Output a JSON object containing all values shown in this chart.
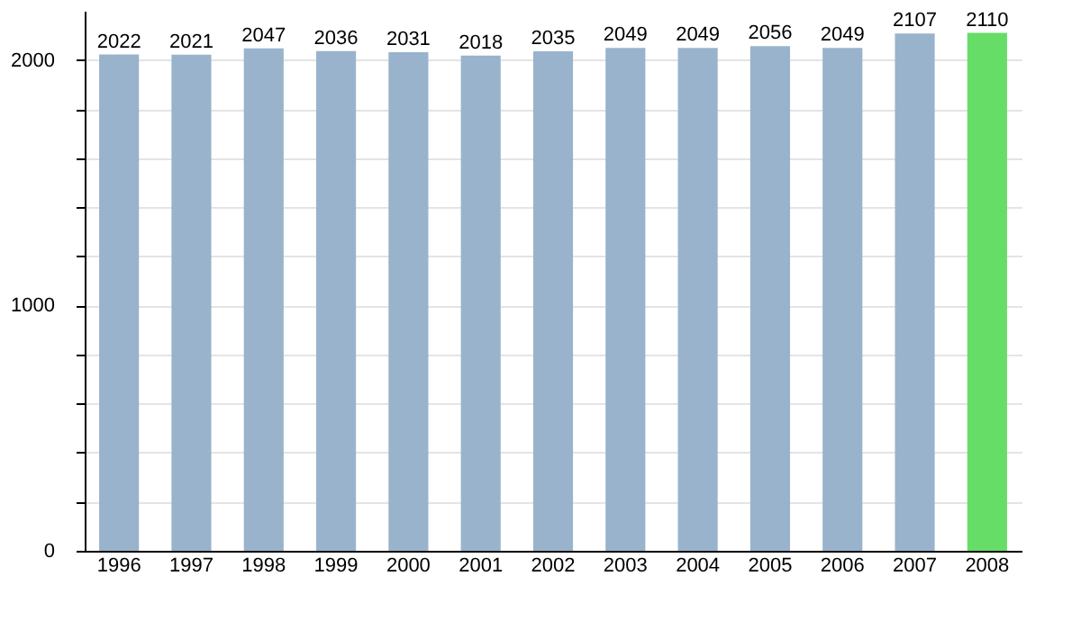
{
  "chart_data": {
    "type": "bar",
    "categories": [
      "1996",
      "1997",
      "1998",
      "1999",
      "2000",
      "2001",
      "2002",
      "2003",
      "2004",
      "2005",
      "2006",
      "2007",
      "2008"
    ],
    "values": [
      2022,
      2021,
      2047,
      2036,
      2031,
      2018,
      2035,
      2049,
      2049,
      2056,
      2049,
      2107,
      2110
    ],
    "colors": [
      "#99b3cc",
      "#99b3cc",
      "#99b3cc",
      "#99b3cc",
      "#99b3cc",
      "#99b3cc",
      "#99b3cc",
      "#99b3cc",
      "#99b3cc",
      "#99b3cc",
      "#99b3cc",
      "#99b3cc",
      "#66dd66"
    ],
    "ylim": [
      0,
      2200
    ],
    "yticks": [
      0,
      {
        "value": 200,
        "label": null
      },
      {
        "value": 400,
        "label": null
      },
      {
        "value": 600,
        "label": null
      },
      {
        "value": 800,
        "label": null
      },
      1000,
      {
        "value": 1200,
        "label": null
      },
      {
        "value": 1400,
        "label": null
      },
      {
        "value": 1600,
        "label": null
      },
      {
        "value": 1800,
        "label": null
      },
      2000
    ],
    "grid": "y",
    "data_labels": true
  }
}
